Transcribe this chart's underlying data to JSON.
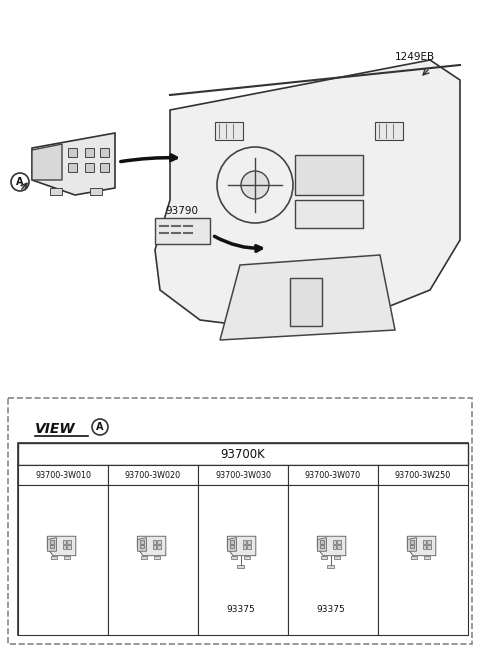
{
  "bg_color": "#ffffff",
  "title_label": "1249EB",
  "part_93790": "93790",
  "view_label": "VIEW",
  "view_circle_label": "A",
  "group_label": "93700K",
  "part_codes": [
    "93700-3W010",
    "93700-3W020",
    "93700-3W030",
    "93700-3W070",
    "93700-3W250"
  ],
  "sub_labels": [
    "",
    "",
    "93375",
    "93375",
    ""
  ],
  "circle_label_A": "A",
  "outer_border_color": "#888888",
  "inner_border_color": "#333333",
  "text_color": "#111111",
  "dashed_border_color": "#888888"
}
